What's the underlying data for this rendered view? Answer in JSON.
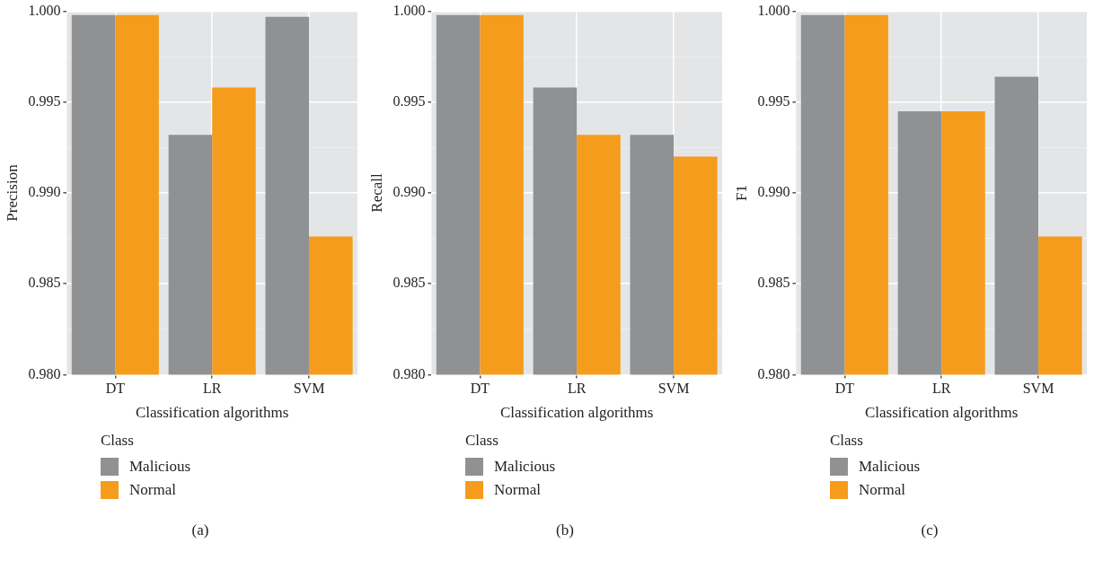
{
  "chart_data": [
    {
      "type": "bar",
      "categories": [
        "DT",
        "LR",
        "SVM"
      ],
      "xlabel": "Classification algorithms",
      "ylabel": "Precision",
      "ylim": [
        0.98,
        1.0
      ],
      "yticks": [
        {
          "value": 0.98,
          "label": "0.980"
        },
        {
          "value": 0.985,
          "label": "0.985"
        },
        {
          "value": 0.99,
          "label": "0.990"
        },
        {
          "value": 0.995,
          "label": "0.995"
        },
        {
          "value": 1.0,
          "label": "1.000"
        }
      ],
      "series": [
        {
          "name": "Malicious",
          "color": "#8f9193",
          "values": [
            0.9998,
            0.9932,
            0.9997
          ]
        },
        {
          "name": "Normal",
          "color": "#f59c1c",
          "values": [
            0.9998,
            0.9958,
            0.9876
          ]
        }
      ],
      "legend": "bottom",
      "legend_title": "Class",
      "grid": true,
      "annotations": [
        "(a)"
      ]
    },
    {
      "type": "bar",
      "categories": [
        "DT",
        "LR",
        "SVM"
      ],
      "xlabel": "Classification algorithms",
      "ylabel": "Recall",
      "ylim": [
        0.98,
        1.0
      ],
      "yticks": [
        {
          "value": 0.98,
          "label": "0.980"
        },
        {
          "value": 0.985,
          "label": "0.985"
        },
        {
          "value": 0.99,
          "label": "0.990"
        },
        {
          "value": 0.995,
          "label": "0.995"
        },
        {
          "value": 1.0,
          "label": "1.000"
        }
      ],
      "series": [
        {
          "name": "Malicious",
          "color": "#8f9193",
          "values": [
            0.9998,
            0.9958,
            0.9932
          ]
        },
        {
          "name": "Normal",
          "color": "#f59c1c",
          "values": [
            0.9998,
            0.9932,
            0.992
          ]
        }
      ],
      "legend": "bottom",
      "legend_title": "Class",
      "grid": true,
      "annotations": [
        "(b)"
      ]
    },
    {
      "type": "bar",
      "categories": [
        "DT",
        "LR",
        "SVM"
      ],
      "xlabel": "Classification algorithms",
      "ylabel": "F1",
      "ylim": [
        0.98,
        1.0
      ],
      "yticks": [
        {
          "value": 0.98,
          "label": "0.980"
        },
        {
          "value": 0.985,
          "label": "0.985"
        },
        {
          "value": 0.99,
          "label": "0.990"
        },
        {
          "value": 0.995,
          "label": "0.995"
        },
        {
          "value": 1.0,
          "label": "1.000"
        }
      ],
      "series": [
        {
          "name": "Malicious",
          "color": "#8f9193",
          "values": [
            0.9998,
            0.9945,
            0.9964
          ]
        },
        {
          "name": "Normal",
          "color": "#f59c1c",
          "values": [
            0.9998,
            0.9945,
            0.9876
          ]
        }
      ],
      "legend": "bottom",
      "legend_title": "Class",
      "grid": true,
      "annotations": [
        "(c)"
      ]
    }
  ]
}
